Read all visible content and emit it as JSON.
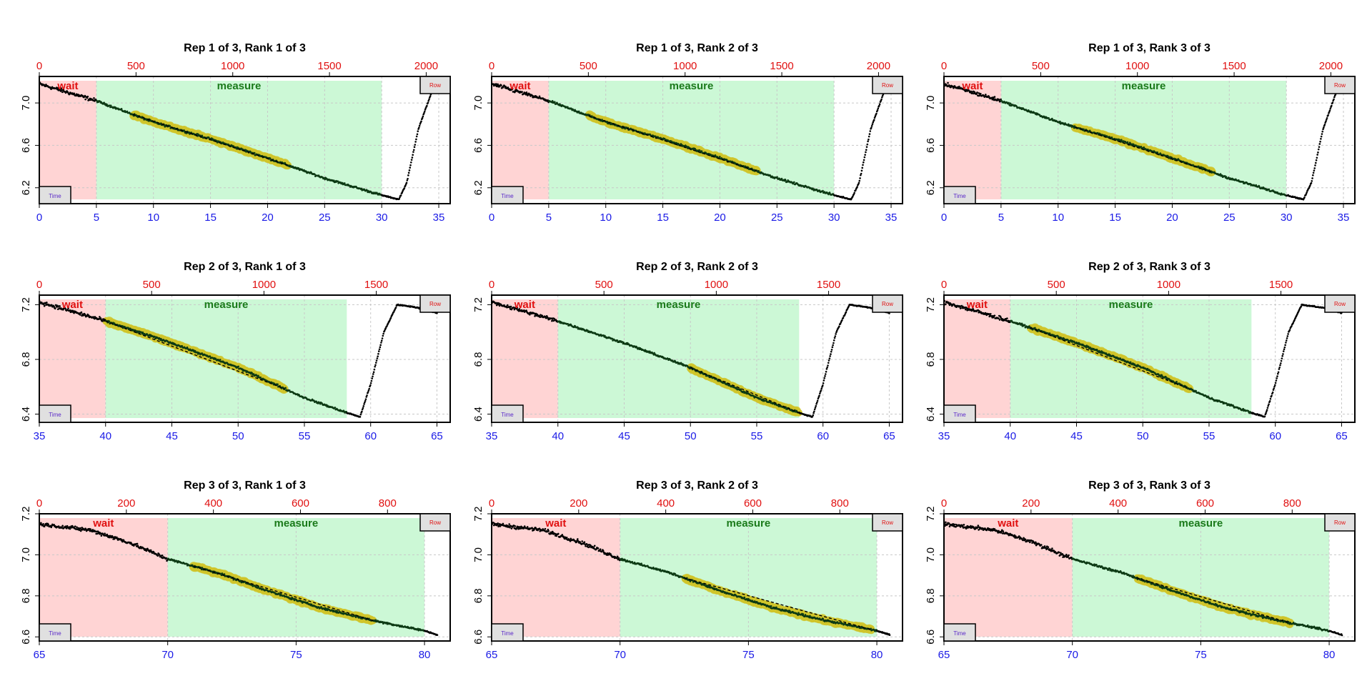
{
  "colors": {
    "wait_fill": "#ffd4d4",
    "measure_fill": "#ccf8d6",
    "wait_text": "#e01010",
    "measure_text": "#1a7a1a",
    "bottom_axis": "#1a1ae6",
    "top_axis": "#e01010",
    "points": "#000000",
    "trace_dark": "#0d3a14",
    "fit_fill": "#cfc42a",
    "fit_line": "#000000",
    "tag_box": "#e0e0e0",
    "tag_time_text": "#5a28c8",
    "tag_row_text": "#e01010"
  },
  "chart_data": [
    {
      "type": "scatter",
      "title": "Rep 1 of 3, Rank 1 of 3",
      "wait_label": "wait",
      "measure_label": "measure",
      "time_tag": "Time",
      "row_tag": "Row",
      "xlim": [
        0,
        36
      ],
      "ylim": [
        6.05,
        7.25
      ],
      "yticks": [
        6.2,
        6.6,
        7.0
      ],
      "xticks": [
        0,
        5,
        10,
        15,
        20,
        25,
        30,
        35
      ],
      "row_ticks": [
        0,
        500,
        1000,
        1500,
        2000
      ],
      "rows_per_time": 59,
      "row_offset_time": 0,
      "wait": [
        0,
        5
      ],
      "measure": [
        5,
        30
      ],
      "fit": [
        8.2,
        21.8
      ],
      "trace": [
        [
          0,
          7.18
        ],
        [
          5,
          7.02
        ],
        [
          10,
          6.82
        ],
        [
          15,
          6.66
        ],
        [
          20,
          6.48
        ],
        [
          25,
          6.29
        ],
        [
          30,
          6.13
        ],
        [
          31.5,
          6.09
        ],
        [
          32.2,
          6.25
        ],
        [
          33.2,
          6.75
        ],
        [
          34.5,
          7.14
        ]
      ]
    },
    {
      "type": "scatter",
      "title": "Rep 1 of 3, Rank 2 of 3",
      "wait_label": "wait",
      "measure_label": "measure",
      "time_tag": "Time",
      "row_tag": "Row",
      "xlim": [
        0,
        36
      ],
      "ylim": [
        6.05,
        7.25
      ],
      "yticks": [
        6.2,
        6.6,
        7.0
      ],
      "xticks": [
        0,
        5,
        10,
        15,
        20,
        25,
        30,
        35
      ],
      "row_ticks": [
        0,
        500,
        1000,
        1500,
        2000
      ],
      "rows_per_time": 59,
      "row_offset_time": 0,
      "wait": [
        0,
        5
      ],
      "measure": [
        5,
        30
      ],
      "fit": [
        8.5,
        23.2
      ],
      "trace": [
        [
          0,
          7.18
        ],
        [
          5,
          7.02
        ],
        [
          10,
          6.82
        ],
        [
          15,
          6.66
        ],
        [
          20,
          6.48
        ],
        [
          25,
          6.29
        ],
        [
          30,
          6.13
        ],
        [
          31.5,
          6.09
        ],
        [
          32.2,
          6.25
        ],
        [
          33.2,
          6.75
        ],
        [
          34.5,
          7.14
        ]
      ]
    },
    {
      "type": "scatter",
      "title": "Rep 1 of 3, Rank 3 of 3",
      "wait_label": "wait",
      "measure_label": "measure",
      "time_tag": "Time",
      "row_tag": "Row",
      "xlim": [
        0,
        36
      ],
      "ylim": [
        6.05,
        7.25
      ],
      "yticks": [
        6.2,
        6.6,
        7.0
      ],
      "xticks": [
        0,
        5,
        10,
        15,
        20,
        25,
        30,
        35
      ],
      "row_ticks": [
        0,
        500,
        1000,
        1500,
        2000
      ],
      "rows_per_time": 59,
      "row_offset_time": 0,
      "wait": [
        0,
        5
      ],
      "measure": [
        5,
        30
      ],
      "fit": [
        11.5,
        23.5
      ],
      "trace": [
        [
          0,
          7.18
        ],
        [
          5,
          7.02
        ],
        [
          10,
          6.82
        ],
        [
          15,
          6.66
        ],
        [
          20,
          6.48
        ],
        [
          25,
          6.29
        ],
        [
          30,
          6.13
        ],
        [
          31.5,
          6.09
        ],
        [
          32.2,
          6.25
        ],
        [
          33.2,
          6.75
        ],
        [
          34.5,
          7.14
        ]
      ]
    },
    {
      "type": "scatter",
      "title": "Rep 2 of 3, Rank 1 of 3",
      "wait_label": "wait",
      "measure_label": "measure",
      "time_tag": "Time",
      "row_tag": "Row",
      "xlim": [
        35,
        66
      ],
      "ylim": [
        6.34,
        7.27
      ],
      "yticks": [
        6.4,
        6.8,
        7.2
      ],
      "xticks": [
        35,
        40,
        45,
        50,
        55,
        60,
        65
      ],
      "row_ticks": [
        0,
        500,
        1000,
        1500
      ],
      "rows_per_time": 59,
      "row_offset_time": 35,
      "wait": [
        35,
        40
      ],
      "measure": [
        40,
        58.2
      ],
      "fit": [
        40,
        53.5
      ],
      "trace": [
        [
          35,
          7.22
        ],
        [
          40,
          7.08
        ],
        [
          45,
          6.92
        ],
        [
          50,
          6.74
        ],
        [
          55,
          6.52
        ],
        [
          58.2,
          6.41
        ],
        [
          59.2,
          6.38
        ],
        [
          60,
          6.62
        ],
        [
          61,
          7.0
        ],
        [
          62,
          7.2
        ],
        [
          63.5,
          7.18
        ],
        [
          65,
          7.14
        ]
      ]
    },
    {
      "type": "scatter",
      "title": "Rep 2 of 3, Rank 2 of 3",
      "wait_label": "wait",
      "measure_label": "measure",
      "time_tag": "Time",
      "row_tag": "Row",
      "xlim": [
        35,
        66
      ],
      "ylim": [
        6.34,
        7.27
      ],
      "yticks": [
        6.4,
        6.8,
        7.2
      ],
      "xticks": [
        35,
        40,
        45,
        50,
        55,
        60,
        65
      ],
      "row_ticks": [
        0,
        500,
        1000,
        1500
      ],
      "rows_per_time": 59,
      "row_offset_time": 35,
      "wait": [
        35,
        40
      ],
      "measure": [
        40,
        58.2
      ],
      "fit": [
        50,
        58.2
      ],
      "trace": [
        [
          35,
          7.22
        ],
        [
          40,
          7.08
        ],
        [
          45,
          6.92
        ],
        [
          50,
          6.74
        ],
        [
          55,
          6.52
        ],
        [
          58.2,
          6.41
        ],
        [
          59.2,
          6.38
        ],
        [
          60,
          6.62
        ],
        [
          61,
          7.0
        ],
        [
          62,
          7.2
        ],
        [
          63.5,
          7.18
        ],
        [
          65,
          7.14
        ]
      ]
    },
    {
      "type": "scatter",
      "title": "Rep 2 of 3, Rank 3 of 3",
      "wait_label": "wait",
      "measure_label": "measure",
      "time_tag": "Time",
      "row_tag": "Row",
      "xlim": [
        35,
        66
      ],
      "ylim": [
        6.34,
        7.27
      ],
      "yticks": [
        6.4,
        6.8,
        7.2
      ],
      "xticks": [
        35,
        40,
        45,
        50,
        55,
        60,
        65
      ],
      "row_ticks": [
        0,
        500,
        1000,
        1500
      ],
      "rows_per_time": 59,
      "row_offset_time": 35,
      "wait": [
        35,
        40
      ],
      "measure": [
        40,
        58.2
      ],
      "fit": [
        41.5,
        53.5
      ],
      "trace": [
        [
          35,
          7.22
        ],
        [
          40,
          7.08
        ],
        [
          45,
          6.92
        ],
        [
          50,
          6.74
        ],
        [
          55,
          6.52
        ],
        [
          58.2,
          6.41
        ],
        [
          59.2,
          6.38
        ],
        [
          60,
          6.62
        ],
        [
          61,
          7.0
        ],
        [
          62,
          7.2
        ],
        [
          63.5,
          7.18
        ],
        [
          65,
          7.14
        ]
      ]
    },
    {
      "type": "scatter",
      "title": "Rep 3 of 3, Rank 1 of 3",
      "wait_label": "wait",
      "measure_label": "measure",
      "time_tag": "Time",
      "row_tag": "Row",
      "xlim": [
        65,
        81
      ],
      "ylim": [
        6.58,
        7.2
      ],
      "yticks": [
        6.6,
        6.8,
        7.0,
        7.2
      ],
      "xticks": [
        65,
        70,
        75,
        80
      ],
      "row_ticks": [
        0,
        200,
        400,
        600,
        800
      ],
      "rows_per_time": 59,
      "row_offset_time": 65,
      "wait": [
        65,
        70
      ],
      "measure": [
        70,
        80
      ],
      "fit": [
        71,
        78
      ],
      "trace": [
        [
          65,
          7.15
        ],
        [
          67,
          7.12
        ],
        [
          68.5,
          7.06
        ],
        [
          70,
          6.98
        ],
        [
          72,
          6.91
        ],
        [
          74,
          6.82
        ],
        [
          76,
          6.74
        ],
        [
          78,
          6.68
        ],
        [
          80,
          6.63
        ],
        [
          80.5,
          6.61
        ]
      ]
    },
    {
      "type": "scatter",
      "title": "Rep 3 of 3, Rank 2 of 3",
      "wait_label": "wait",
      "measure_label": "measure",
      "time_tag": "Time",
      "row_tag": "Row",
      "xlim": [
        65,
        81
      ],
      "ylim": [
        6.58,
        7.2
      ],
      "yticks": [
        6.6,
        6.8,
        7.0,
        7.2
      ],
      "xticks": [
        65,
        70,
        75,
        80
      ],
      "row_ticks": [
        0,
        200,
        400,
        600,
        800
      ],
      "rows_per_time": 59,
      "row_offset_time": 65,
      "wait": [
        65,
        70
      ],
      "measure": [
        70,
        80
      ],
      "fit": [
        72.5,
        79.8
      ],
      "trace": [
        [
          65,
          7.15
        ],
        [
          67,
          7.12
        ],
        [
          68.5,
          7.06
        ],
        [
          70,
          6.98
        ],
        [
          72,
          6.91
        ],
        [
          74,
          6.82
        ],
        [
          76,
          6.74
        ],
        [
          78,
          6.68
        ],
        [
          80,
          6.63
        ],
        [
          80.5,
          6.61
        ]
      ]
    },
    {
      "type": "scatter",
      "title": "Rep 3 of 3, Rank 3 of 3",
      "wait_label": "wait",
      "measure_label": "measure",
      "time_tag": "Time",
      "row_tag": "Row",
      "xlim": [
        65,
        81
      ],
      "ylim": [
        6.58,
        7.2
      ],
      "yticks": [
        6.6,
        6.8,
        7.0,
        7.2
      ],
      "xticks": [
        65,
        70,
        75,
        80
      ],
      "row_ticks": [
        0,
        200,
        400,
        600,
        800
      ],
      "rows_per_time": 59,
      "row_offset_time": 65,
      "wait": [
        65,
        70
      ],
      "measure": [
        70,
        80
      ],
      "fit": [
        72.5,
        78.5
      ],
      "trace": [
        [
          65,
          7.15
        ],
        [
          67,
          7.12
        ],
        [
          68.5,
          7.06
        ],
        [
          70,
          6.98
        ],
        [
          72,
          6.91
        ],
        [
          74,
          6.82
        ],
        [
          76,
          6.74
        ],
        [
          78,
          6.68
        ],
        [
          80,
          6.63
        ],
        [
          80.5,
          6.61
        ]
      ]
    }
  ]
}
